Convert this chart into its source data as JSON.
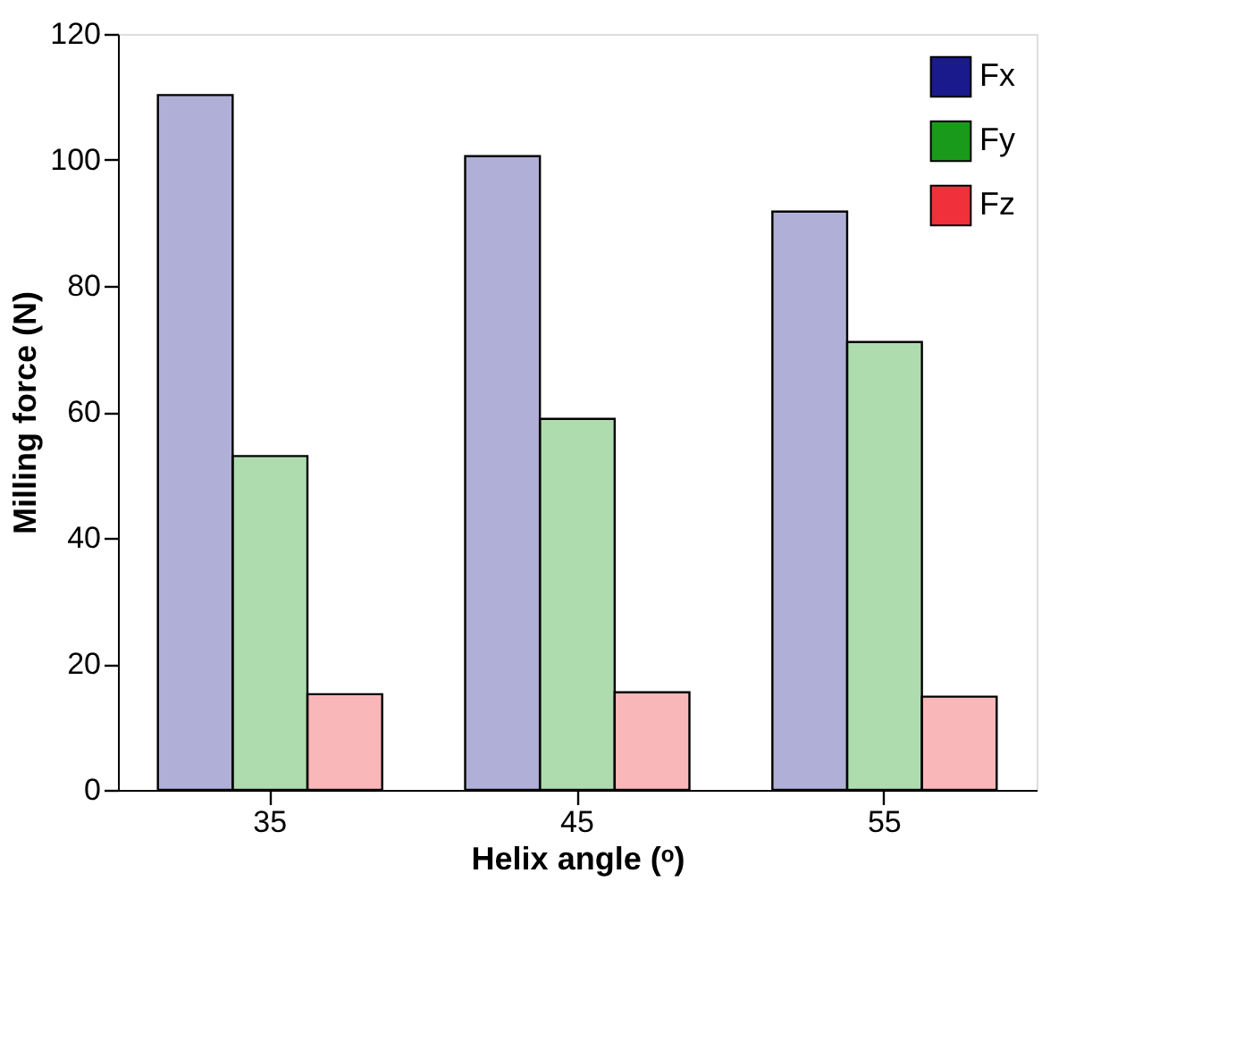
{
  "chart_data": {
    "type": "bar",
    "xlabel": "Helix angle (ᵒ)",
    "ylabel": "Milling force (N)",
    "categories": [
      "35",
      "45",
      "55"
    ],
    "series": [
      {
        "name": "Fx",
        "color": "#1a1a8c",
        "values": [
          110.3,
          100.6,
          91.8
        ]
      },
      {
        "name": "Fy",
        "color": "#1a9a1a",
        "values": [
          53.0,
          58.9,
          71.1
        ]
      },
      {
        "name": "Fz",
        "color": "#f0303a",
        "values": [
          15.2,
          15.5,
          14.8
        ]
      }
    ],
    "ylim": [
      0,
      120
    ],
    "yticks": [
      0,
      20,
      40,
      60,
      80,
      100,
      120
    ],
    "legend": "top right",
    "grid": false
  }
}
